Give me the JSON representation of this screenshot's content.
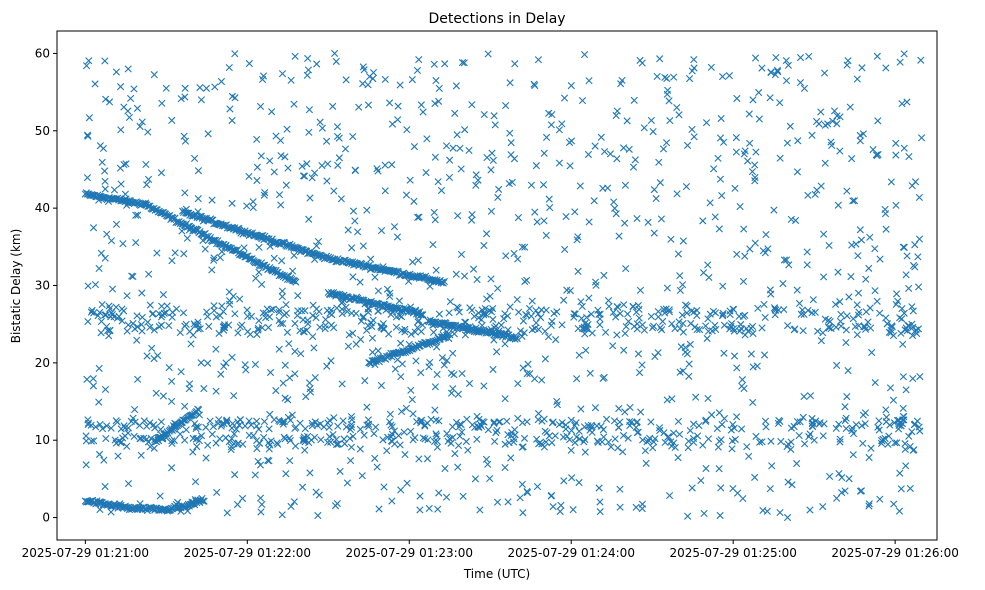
{
  "chart_data": {
    "type": "scatter",
    "title": "Detections in Delay",
    "xlabel": "Time (UTC)",
    "ylabel": "Bistatic Delay (km)",
    "x_unit": "seconds after 2025-07-29 01:21:00 UTC",
    "xlim": [
      -10.5,
      315.5
    ],
    "ylim": [
      -2.9,
      62.9
    ],
    "x_ticks": [
      {
        "value": 0,
        "label": "2025-07-29 01:21:00"
      },
      {
        "value": 60,
        "label": "2025-07-29 01:22:00"
      },
      {
        "value": 120,
        "label": "2025-07-29 01:23:00"
      },
      {
        "value": 180,
        "label": "2025-07-29 01:24:00"
      },
      {
        "value": 240,
        "label": "2025-07-29 01:25:00"
      },
      {
        "value": 300,
        "label": "2025-07-29 01:26:00"
      }
    ],
    "y_ticks": [
      {
        "value": 0,
        "label": "0"
      },
      {
        "value": 10,
        "label": "10"
      },
      {
        "value": 20,
        "label": "20"
      },
      {
        "value": 30,
        "label": "30"
      },
      {
        "value": 40,
        "label": "40"
      },
      {
        "value": 50,
        "label": "50"
      },
      {
        "value": 60,
        "label": "60"
      }
    ],
    "marker": "x",
    "color": "#1f77b4",
    "grid": false,
    "tracks": [
      {
        "name": "descending track A",
        "x": [
          0,
          22,
          78
        ],
        "y": [
          41.8,
          40.5,
          30.4
        ]
      },
      {
        "name": "descending track B",
        "x": [
          36,
          89,
          133
        ],
        "y": [
          39.5,
          33.6,
          30.4
        ]
      },
      {
        "name": "descending track C",
        "x": [
          90,
          125
        ],
        "y": [
          29.0,
          26.3
        ]
      },
      {
        "name": "descending track D",
        "x": [
          127,
          160
        ],
        "y": [
          25.4,
          23.2
        ]
      },
      {
        "name": "ascending track",
        "x": [
          105,
          135
        ],
        "y": [
          20.0,
          23.5
        ]
      },
      {
        "name": "rising track",
        "x": [
          26,
          42
        ],
        "y": [
          9.9,
          13.9
        ]
      },
      {
        "name": "low arc",
        "x": [
          0,
          16,
          30,
          38,
          44
        ],
        "y": [
          2.2,
          1.2,
          1.0,
          1.5,
          2.3
        ]
      },
      {
        "name": "band 12 km",
        "x": [
          0,
          310
        ],
        "y": [
          12.0,
          12.0
        ]
      },
      {
        "name": "band 10 km",
        "x": [
          0,
          310
        ],
        "y": [
          10.0,
          10.0
        ]
      },
      {
        "name": "band 24.5 km",
        "x": [
          0,
          310
        ],
        "y": [
          24.5,
          24.5
        ]
      },
      {
        "name": "band 26.5 km",
        "x": [
          0,
          310
        ],
        "y": [
          26.5,
          26.5
        ]
      }
    ],
    "clutter_range": {
      "x": [
        0,
        310
      ],
      "y": [
        0,
        60
      ]
    }
  }
}
